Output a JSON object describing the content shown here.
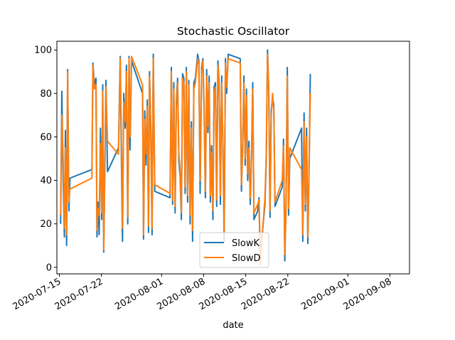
{
  "chart_data": {
    "type": "line",
    "title": "Stochastic Oscillator",
    "xlabel": "date",
    "ylabel": "",
    "ylim": [
      -3,
      104
    ],
    "x_range": [
      "2020-07-14T14:00",
      "2020-09-11T06:00"
    ],
    "x_ticks": [
      "2020-07-15",
      "2020-07-22",
      "2020-08-01",
      "2020-08-08",
      "2020-08-15",
      "2020-08-22",
      "2020-09-01",
      "2020-09-08"
    ],
    "y_ticks": [
      0,
      20,
      40,
      60,
      80,
      100
    ],
    "grid": false,
    "legend_position": "bottom-center",
    "series": [
      {
        "name": "SlowK",
        "color": "#1f77b4",
        "points": [
          [
            "2020-07-15T05:00",
            20
          ],
          [
            "2020-07-15T10:00",
            81
          ],
          [
            "2020-07-15T15:00",
            40
          ],
          [
            "2020-07-15T20:00",
            14
          ],
          [
            "2020-07-16T00:00",
            63
          ],
          [
            "2020-07-16T05:00",
            10
          ],
          [
            "2020-07-16T09:00",
            91
          ],
          [
            "2020-07-16T14:00",
            26
          ],
          [
            "2020-07-16T18:00",
            41
          ],
          [
            "2020-07-20T10:00",
            45
          ],
          [
            "2020-07-20T14:00",
            94
          ],
          [
            "2020-07-20T20:00",
            84
          ],
          [
            "2020-07-21T02:00",
            87
          ],
          [
            "2020-07-21T06:00",
            14
          ],
          [
            "2020-07-21T11:00",
            30
          ],
          [
            "2020-07-21T15:00",
            15
          ],
          [
            "2020-07-21T20:00",
            64
          ],
          [
            "2020-07-22T01:00",
            22
          ],
          [
            "2020-07-22T05:00",
            84
          ],
          [
            "2020-07-22T09:00",
            7
          ],
          [
            "2020-07-22T14:00",
            51
          ],
          [
            "2020-07-22T18:00",
            86
          ],
          [
            "2020-07-23T00:00",
            44
          ],
          [
            "2020-07-24T20:00",
            55
          ],
          [
            "2020-07-25T03:00",
            97
          ],
          [
            "2020-07-25T08:00",
            46
          ],
          [
            "2020-07-25T12:00",
            12
          ],
          [
            "2020-07-25T17:00",
            80
          ],
          [
            "2020-07-25T23:00",
            64
          ],
          [
            "2020-07-26T04:00",
            93
          ],
          [
            "2020-07-26T09:00",
            20
          ],
          [
            "2020-07-26T14:00",
            97
          ],
          [
            "2020-07-26T18:00",
            54
          ],
          [
            "2020-07-27T00:00",
            95
          ],
          [
            "2020-07-28T20:00",
            80
          ],
          [
            "2020-07-29T00:00",
            13
          ],
          [
            "2020-07-29T05:00",
            72
          ],
          [
            "2020-07-29T10:00",
            47
          ],
          [
            "2020-07-29T15:00",
            77
          ],
          [
            "2020-07-29T20:00",
            16
          ],
          [
            "2020-07-30T00:00",
            90
          ],
          [
            "2020-07-30T05:00",
            65
          ],
          [
            "2020-07-30T10:00",
            15
          ],
          [
            "2020-07-30T15:00",
            98
          ],
          [
            "2020-07-30T21:00",
            35
          ],
          [
            "2020-08-02T10:00",
            32
          ],
          [
            "2020-08-02T15:00",
            92
          ],
          [
            "2020-08-02T20:00",
            29
          ],
          [
            "2020-08-03T01:00",
            85
          ],
          [
            "2020-08-03T06:00",
            25
          ],
          [
            "2020-08-03T11:00",
            76
          ],
          [
            "2020-08-03T16:00",
            87
          ],
          [
            "2020-08-03T21:00",
            49
          ],
          [
            "2020-08-04T02:00",
            42
          ],
          [
            "2020-08-04T07:00",
            22
          ],
          [
            "2020-08-04T12:00",
            89
          ],
          [
            "2020-08-04T17:00",
            87
          ],
          [
            "2020-08-04T22:00",
            34
          ],
          [
            "2020-08-05T03:00",
            92
          ],
          [
            "2020-08-05T08:00",
            30
          ],
          [
            "2020-08-05T13:00",
            86
          ],
          [
            "2020-08-05T18:00",
            20
          ],
          [
            "2020-08-05T23:00",
            67
          ],
          [
            "2020-08-06T04:00",
            12
          ],
          [
            "2020-08-06T09:00",
            85
          ],
          [
            "2020-08-06T15:00",
            87
          ],
          [
            "2020-08-07T00:00",
            98
          ],
          [
            "2020-08-07T05:00",
            95
          ],
          [
            "2020-08-07T10:00",
            34
          ],
          [
            "2020-08-07T16:00",
            92
          ],
          [
            "2020-08-07T21:00",
            96
          ],
          [
            "2020-08-08T02:00",
            73
          ],
          [
            "2020-08-08T07:00",
            32
          ],
          [
            "2020-08-08T12:00",
            91
          ],
          [
            "2020-08-08T17:00",
            62
          ],
          [
            "2020-08-08T22:00",
            88
          ],
          [
            "2020-08-09T03:00",
            30
          ],
          [
            "2020-08-09T08:00",
            56
          ],
          [
            "2020-08-09T13:00",
            22
          ],
          [
            "2020-08-09T18:00",
            83
          ],
          [
            "2020-08-09T23:00",
            85
          ],
          [
            "2020-08-10T04:00",
            28
          ],
          [
            "2020-08-10T09:00",
            95
          ],
          [
            "2020-08-10T14:00",
            84
          ],
          [
            "2020-08-10T19:00",
            29
          ],
          [
            "2020-08-11T00:00",
            88
          ],
          [
            "2020-08-11T05:00",
            54
          ],
          [
            "2020-08-11T10:00",
            12
          ],
          [
            "2020-08-11T15:00",
            96
          ],
          [
            "2020-08-11T20:00",
            80
          ],
          [
            "2020-08-12T02:00",
            98
          ],
          [
            "2020-08-14T02:00",
            96
          ],
          [
            "2020-08-14T07:00",
            35
          ],
          [
            "2020-08-14T12:00",
            57
          ],
          [
            "2020-08-14T17:00",
            88
          ],
          [
            "2020-08-14T22:00",
            47
          ],
          [
            "2020-08-15T03:00",
            82
          ],
          [
            "2020-08-15T08:00",
            40
          ],
          [
            "2020-08-15T13:00",
            58
          ],
          [
            "2020-08-15T18:00",
            29
          ],
          [
            "2020-08-15T23:00",
            50
          ],
          [
            "2020-08-16T04:00",
            85
          ],
          [
            "2020-08-16T09:00",
            22
          ],
          [
            "2020-08-17T00:00",
            26
          ],
          [
            "2020-08-17T05:00",
            32
          ],
          [
            "2020-08-17T10:00",
            5
          ],
          [
            "2020-08-18T05:00",
            29
          ],
          [
            "2020-08-18T10:00",
            49
          ],
          [
            "2020-08-18T15:00",
            100
          ],
          [
            "2020-08-18T20:00",
            81
          ],
          [
            "2020-08-19T01:00",
            23
          ],
          [
            "2020-08-19T06:00",
            72
          ],
          [
            "2020-08-19T11:00",
            78
          ],
          [
            "2020-08-19T16:00",
            75
          ],
          [
            "2020-08-19T21:00",
            28
          ],
          [
            "2020-08-21T02:00",
            37
          ],
          [
            "2020-08-21T07:00",
            59
          ],
          [
            "2020-08-21T12:00",
            3
          ],
          [
            "2020-08-21T17:00",
            28
          ],
          [
            "2020-08-21T22:00",
            92
          ],
          [
            "2020-08-22T03:00",
            24
          ],
          [
            "2020-08-22T08:00",
            50
          ],
          [
            "2020-08-24T07:00",
            64
          ],
          [
            "2020-08-24T12:00",
            12
          ],
          [
            "2020-08-24T17:00",
            71
          ],
          [
            "2020-08-24T22:00",
            26
          ],
          [
            "2020-08-25T03:00",
            64
          ],
          [
            "2020-08-25T08:00",
            11
          ],
          [
            "2020-08-25T13:00",
            44
          ],
          [
            "2020-08-25T18:00",
            89
          ]
        ]
      },
      {
        "name": "SlowD",
        "color": "#ff7f0e",
        "points": [
          [
            "2020-07-15T05:00",
            24
          ],
          [
            "2020-07-15T10:00",
            70
          ],
          [
            "2020-07-15T15:00",
            50
          ],
          [
            "2020-07-15T20:00",
            18
          ],
          [
            "2020-07-16T00:00",
            55
          ],
          [
            "2020-07-16T05:00",
            15
          ],
          [
            "2020-07-16T09:00",
            90
          ],
          [
            "2020-07-16T14:00",
            30
          ],
          [
            "2020-07-16T18:00",
            36
          ],
          [
            "2020-07-20T10:00",
            41
          ],
          [
            "2020-07-20T14:00",
            93
          ],
          [
            "2020-07-20T20:00",
            82
          ],
          [
            "2020-07-21T02:00",
            84
          ],
          [
            "2020-07-21T06:00",
            17
          ],
          [
            "2020-07-21T11:00",
            27
          ],
          [
            "2020-07-21T15:00",
            24
          ],
          [
            "2020-07-21T20:00",
            57
          ],
          [
            "2020-07-22T01:00",
            25
          ],
          [
            "2020-07-22T05:00",
            81
          ],
          [
            "2020-07-22T09:00",
            8
          ],
          [
            "2020-07-22T14:00",
            46
          ],
          [
            "2020-07-22T18:00",
            83
          ],
          [
            "2020-07-23T00:00",
            58
          ],
          [
            "2020-07-24T20:00",
            52
          ],
          [
            "2020-07-25T03:00",
            96
          ],
          [
            "2020-07-25T08:00",
            56
          ],
          [
            "2020-07-25T12:00",
            18
          ],
          [
            "2020-07-25T17:00",
            76
          ],
          [
            "2020-07-25T23:00",
            67
          ],
          [
            "2020-07-26T04:00",
            90
          ],
          [
            "2020-07-26T09:00",
            23
          ],
          [
            "2020-07-26T14:00",
            96
          ],
          [
            "2020-07-26T18:00",
            60
          ],
          [
            "2020-07-27T00:00",
            97
          ],
          [
            "2020-07-28T20:00",
            84
          ],
          [
            "2020-07-29T00:00",
            15
          ],
          [
            "2020-07-29T05:00",
            68
          ],
          [
            "2020-07-29T10:00",
            52
          ],
          [
            "2020-07-29T15:00",
            74
          ],
          [
            "2020-07-29T20:00",
            19
          ],
          [
            "2020-07-30T00:00",
            88
          ],
          [
            "2020-07-30T05:00",
            60
          ],
          [
            "2020-07-30T10:00",
            18
          ],
          [
            "2020-07-30T15:00",
            96
          ],
          [
            "2020-07-30T21:00",
            38
          ],
          [
            "2020-08-02T10:00",
            34
          ],
          [
            "2020-08-02T15:00",
            90
          ],
          [
            "2020-08-02T20:00",
            31
          ],
          [
            "2020-08-03T01:00",
            82
          ],
          [
            "2020-08-03T06:00",
            28
          ],
          [
            "2020-08-03T11:00",
            73
          ],
          [
            "2020-08-03T16:00",
            85
          ],
          [
            "2020-08-03T21:00",
            52
          ],
          [
            "2020-08-04T02:00",
            45
          ],
          [
            "2020-08-04T07:00",
            25
          ],
          [
            "2020-08-04T12:00",
            87
          ],
          [
            "2020-08-04T17:00",
            85
          ],
          [
            "2020-08-04T22:00",
            37
          ],
          [
            "2020-08-05T03:00",
            90
          ],
          [
            "2020-08-05T08:00",
            33
          ],
          [
            "2020-08-05T13:00",
            84
          ],
          [
            "2020-08-05T18:00",
            24
          ],
          [
            "2020-08-05T23:00",
            64
          ],
          [
            "2020-08-06T04:00",
            17
          ],
          [
            "2020-08-06T09:00",
            82
          ],
          [
            "2020-08-06T15:00",
            85
          ],
          [
            "2020-08-07T00:00",
            96
          ],
          [
            "2020-08-07T05:00",
            93
          ],
          [
            "2020-08-07T10:00",
            40
          ],
          [
            "2020-08-07T16:00",
            89
          ],
          [
            "2020-08-07T21:00",
            95
          ],
          [
            "2020-08-08T02:00",
            70
          ],
          [
            "2020-08-08T07:00",
            35
          ],
          [
            "2020-08-08T12:00",
            88
          ],
          [
            "2020-08-08T17:00",
            65
          ],
          [
            "2020-08-08T22:00",
            85
          ],
          [
            "2020-08-09T03:00",
            33
          ],
          [
            "2020-08-09T08:00",
            53
          ],
          [
            "2020-08-09T13:00",
            26
          ],
          [
            "2020-08-09T18:00",
            80
          ],
          [
            "2020-08-09T23:00",
            83
          ],
          [
            "2020-08-10T04:00",
            31
          ],
          [
            "2020-08-10T09:00",
            93
          ],
          [
            "2020-08-10T14:00",
            82
          ],
          [
            "2020-08-10T19:00",
            33
          ],
          [
            "2020-08-11T00:00",
            85
          ],
          [
            "2020-08-11T05:00",
            57
          ],
          [
            "2020-08-11T10:00",
            16
          ],
          [
            "2020-08-11T15:00",
            94
          ],
          [
            "2020-08-11T20:00",
            83
          ],
          [
            "2020-08-12T02:00",
            96
          ],
          [
            "2020-08-14T02:00",
            94
          ],
          [
            "2020-08-14T07:00",
            38
          ],
          [
            "2020-08-14T12:00",
            54
          ],
          [
            "2020-08-14T17:00",
            85
          ],
          [
            "2020-08-14T22:00",
            50
          ],
          [
            "2020-08-15T03:00",
            79
          ],
          [
            "2020-08-15T08:00",
            43
          ],
          [
            "2020-08-15T13:00",
            55
          ],
          [
            "2020-08-15T18:00",
            32
          ],
          [
            "2020-08-15T23:00",
            48
          ],
          [
            "2020-08-16T04:00",
            82
          ],
          [
            "2020-08-16T09:00",
            25
          ],
          [
            "2020-08-17T00:00",
            29
          ],
          [
            "2020-08-17T05:00",
            31
          ],
          [
            "2020-08-17T10:00",
            1
          ],
          [
            "2020-08-18T05:00",
            32
          ],
          [
            "2020-08-18T10:00",
            52
          ],
          [
            "2020-08-18T15:00",
            98
          ],
          [
            "2020-08-18T20:00",
            83
          ],
          [
            "2020-08-19T01:00",
            26
          ],
          [
            "2020-08-19T06:00",
            69
          ],
          [
            "2020-08-19T11:00",
            80
          ],
          [
            "2020-08-19T16:00",
            72
          ],
          [
            "2020-08-19T21:00",
            30
          ],
          [
            "2020-08-21T02:00",
            40
          ],
          [
            "2020-08-21T07:00",
            56
          ],
          [
            "2020-08-21T12:00",
            6
          ],
          [
            "2020-08-21T17:00",
            25
          ],
          [
            "2020-08-21T22:00",
            88
          ],
          [
            "2020-08-22T03:00",
            27
          ],
          [
            "2020-08-22T08:00",
            55
          ],
          [
            "2020-08-24T07:00",
            45
          ],
          [
            "2020-08-24T12:00",
            15
          ],
          [
            "2020-08-24T17:00",
            67
          ],
          [
            "2020-08-24T22:00",
            29
          ],
          [
            "2020-08-25T03:00",
            60
          ],
          [
            "2020-08-25T08:00",
            14
          ],
          [
            "2020-08-25T13:00",
            47
          ],
          [
            "2020-08-25T18:00",
            80
          ]
        ]
      }
    ]
  }
}
